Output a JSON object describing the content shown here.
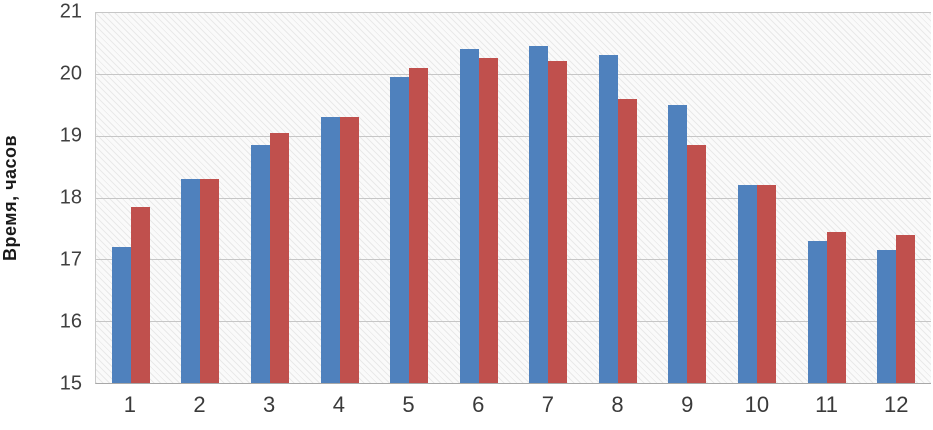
{
  "chart_data": {
    "type": "bar",
    "title": "",
    "xlabel": "",
    "ylabel": "Время, часов",
    "ylim": [
      15,
      21
    ],
    "ytick_step": 1,
    "grid": "horizontal",
    "legend": "none",
    "categories": [
      "1",
      "2",
      "3",
      "4",
      "5",
      "6",
      "7",
      "8",
      "9",
      "10",
      "11",
      "12"
    ],
    "series": [
      {
        "name": "series-blue",
        "color": "#4F81BD",
        "values": [
          17.2,
          18.3,
          18.85,
          19.3,
          19.95,
          20.4,
          20.45,
          20.3,
          19.5,
          18.2,
          17.3,
          17.15
        ]
      },
      {
        "name": "series-red",
        "color": "#C0504D",
        "values": [
          17.85,
          18.3,
          19.05,
          19.3,
          20.1,
          20.25,
          20.2,
          19.6,
          18.85,
          18.2,
          17.45,
          17.4
        ]
      }
    ]
  },
  "colors": {
    "gridline": "#c6c6c6",
    "axis_text": "#3f3f3f"
  }
}
